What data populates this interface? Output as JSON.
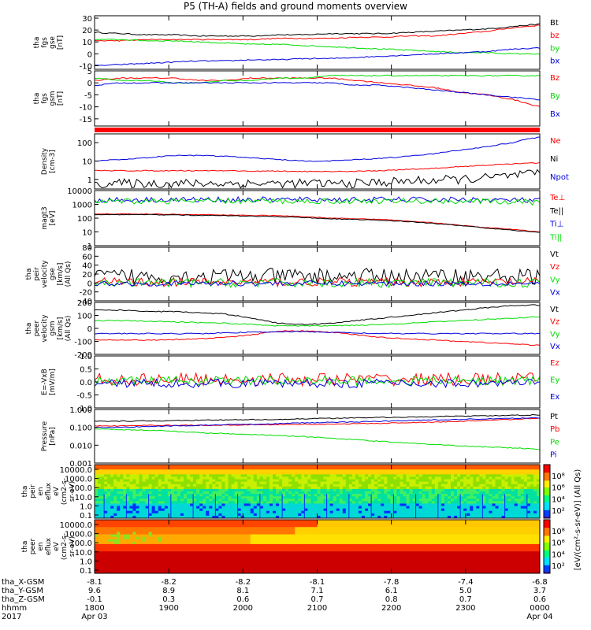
{
  "title": "P5 (TH-A) fields and ground moments overview",
  "colors": {
    "black": "#000000",
    "red": "#ff0000",
    "green": "#00dd00",
    "blue": "#0000dd"
  },
  "chart_data": [
    {
      "type": "line",
      "panel": "fgs_gse",
      "ylabel": [
        "tha",
        "fgs",
        "gse",
        "[nT]"
      ],
      "yticks": [
        30,
        20,
        10,
        0,
        -10
      ],
      "ylim": [
        -13,
        32
      ],
      "series": [
        {
          "name": "Bt",
          "color": "black",
          "values": [
            18,
            17,
            16,
            16,
            15,
            15,
            15,
            16,
            16,
            17,
            17,
            17,
            18,
            19,
            20,
            21,
            23,
            25
          ]
        },
        {
          "name": "bz",
          "color": "red",
          "values": [
            11,
            11,
            12,
            12,
            12,
            12,
            12,
            13,
            13,
            13,
            14,
            14,
            15,
            15,
            17,
            19,
            22,
            24
          ]
        },
        {
          "name": "by",
          "color": "green",
          "values": [
            12,
            12,
            11,
            11,
            10,
            9,
            8,
            8,
            7,
            6,
            5,
            4,
            3,
            2,
            1,
            1,
            0,
            0
          ]
        },
        {
          "name": "bx",
          "color": "blue",
          "values": [
            -10,
            -9,
            -8,
            -7,
            -6,
            -6,
            -5,
            -5,
            -4,
            -4,
            -3,
            -2,
            -1,
            0,
            1,
            2,
            4,
            5
          ]
        }
      ]
    },
    {
      "type": "line",
      "panel": "fgs_gsm",
      "ylabel": [
        "tha",
        "fgs",
        "gsm",
        "[nT]"
      ],
      "yticks": [
        5,
        0,
        -5,
        -10,
        -15
      ],
      "ylim": [
        -18,
        5
      ],
      "series": [
        {
          "name": "Bz",
          "color": "red",
          "values": [
            1,
            2,
            2,
            2,
            1,
            1,
            2,
            2,
            2,
            2,
            1,
            0,
            -1,
            -2,
            -4,
            -5,
            -7,
            -10
          ]
        },
        {
          "name": "By",
          "color": "green",
          "values": [
            2,
            1,
            1,
            0,
            0,
            1,
            1,
            2,
            2,
            3,
            3,
            3,
            3,
            3,
            3,
            3,
            3,
            3
          ]
        },
        {
          "name": "Bx",
          "color": "blue",
          "values": [
            -1,
            0,
            0,
            0,
            0,
            0,
            0,
            0,
            0,
            0,
            -1,
            -1,
            -2,
            -3,
            -4,
            -5,
            -6,
            -7
          ]
        }
      ]
    },
    {
      "type": "line",
      "panel": "density",
      "ylabel": [
        "Density",
        "[cm-3]"
      ],
      "yticks": [
        "100",
        "10",
        "1"
      ],
      "ylim": [
        0.3,
        300
      ],
      "yscale": "log",
      "series": [
        {
          "name": "Ne",
          "color": "red",
          "values": [
            3,
            3,
            3,
            3,
            3,
            3,
            2.8,
            2.8,
            2.7,
            2.6,
            2.8,
            3,
            3.5,
            4,
            5,
            6,
            7,
            8
          ]
        },
        {
          "name": "Ni",
          "color": "black",
          "values": [
            0.6,
            0.6,
            0.6,
            0.6,
            0.6,
            0.6,
            0.6,
            0.6,
            0.6,
            0.6,
            0.6,
            0.7,
            0.8,
            0.9,
            1,
            1.2,
            1.6,
            2
          ]
        },
        {
          "name": "Npot",
          "color": "blue",
          "values": [
            10,
            12,
            15,
            20,
            20,
            18,
            15,
            12,
            10,
            10,
            12,
            14,
            18,
            25,
            40,
            60,
            100,
            200
          ]
        }
      ]
    },
    {
      "type": "line",
      "panel": "temperature",
      "ylabel": [
        "magt3",
        "[eV]"
      ],
      "yticks": [
        "10000",
        "1000",
        "100",
        "10",
        "1"
      ],
      "ylim": [
        1,
        10000
      ],
      "yscale": "log",
      "series": [
        {
          "name": "Te⊥",
          "color": "red",
          "values": [
            200,
            200,
            200,
            190,
            180,
            170,
            160,
            150,
            130,
            100,
            90,
            80,
            60,
            45,
            30,
            20,
            15,
            10
          ]
        },
        {
          "name": "Te||",
          "color": "black",
          "values": [
            180,
            180,
            180,
            170,
            160,
            150,
            140,
            130,
            110,
            90,
            80,
            70,
            55,
            40,
            28,
            18,
            13,
            9
          ]
        },
        {
          "name": "Ti⊥",
          "color": "blue",
          "values": [
            2000,
            2100,
            2200,
            2200,
            2200,
            2200,
            2200,
            2200,
            2200,
            2200,
            2200,
            2200,
            2200,
            2200,
            2200,
            2100,
            2000,
            1900
          ]
        },
        {
          "name": "Ti||",
          "color": "green",
          "values": [
            1500,
            1600,
            1700,
            1700,
            1700,
            1700,
            1700,
            1700,
            1700,
            1700,
            1700,
            1700,
            1700,
            1700,
            1700,
            1600,
            1500,
            1400
          ]
        }
      ]
    },
    {
      "type": "line",
      "panel": "velocity_gse",
      "ylabel": [
        "tha",
        "peir",
        "velocity",
        "gse",
        "[km/s]",
        "(All Qs)"
      ],
      "yticks": [
        80,
        60,
        40,
        20,
        0,
        -20,
        -40
      ],
      "ylim": [
        -40,
        80
      ],
      "series": [
        {
          "name": "Vt",
          "color": "black",
          "values": [
            15,
            15,
            15,
            15,
            15,
            15,
            15,
            15,
            15,
            15,
            15,
            15,
            15,
            15,
            15,
            15,
            15,
            15
          ]
        },
        {
          "name": "Vz",
          "color": "red",
          "values": [
            2,
            2,
            2,
            2,
            2,
            2,
            2,
            2,
            2,
            2,
            2,
            2,
            2,
            2,
            2,
            2,
            2,
            2
          ]
        },
        {
          "name": "Vy",
          "color": "green",
          "values": [
            0,
            0,
            0,
            0,
            0,
            0,
            0,
            0,
            0,
            0,
            0,
            0,
            0,
            0,
            0,
            0,
            0,
            0
          ]
        },
        {
          "name": "Vx",
          "color": "blue",
          "values": [
            -1,
            -1,
            -1,
            -1,
            -1,
            -1,
            -1,
            -1,
            -1,
            -1,
            -1,
            -1,
            -1,
            -1,
            -1,
            -1,
            -1,
            -1
          ]
        }
      ]
    },
    {
      "type": "line",
      "panel": "velocity_gsm",
      "ylabel": [
        "tha",
        "peer",
        "velocity",
        "gsm",
        "[km/s]",
        "(All Qs)"
      ],
      "yticks": [
        200,
        100,
        0,
        -100,
        -200
      ],
      "ylim": [
        -200,
        200
      ],
      "series": [
        {
          "name": "Vt",
          "color": "black",
          "values": [
            140,
            140,
            130,
            130,
            120,
            110,
            80,
            40,
            30,
            40,
            60,
            80,
            100,
            120,
            140,
            160,
            175,
            180
          ]
        },
        {
          "name": "Vz",
          "color": "red",
          "values": [
            -90,
            -90,
            -90,
            -85,
            -80,
            -70,
            -50,
            -20,
            -20,
            -30,
            -50,
            -70,
            -80,
            -90,
            -100,
            -110,
            -120,
            -130
          ]
        },
        {
          "name": "Vy",
          "color": "green",
          "values": [
            60,
            60,
            55,
            50,
            45,
            40,
            30,
            20,
            20,
            20,
            25,
            30,
            40,
            50,
            60,
            70,
            80,
            90
          ]
        },
        {
          "name": "Vx",
          "color": "blue",
          "values": [
            -40,
            -40,
            -40,
            -40,
            -40,
            -35,
            -30,
            -25,
            -25,
            -30,
            -35,
            -40,
            -40,
            -40,
            -40,
            -40,
            -40,
            -40
          ]
        }
      ]
    },
    {
      "type": "line",
      "panel": "efield",
      "ylabel": [
        "E=-VxB",
        "[mV/m]"
      ],
      "yticks": [
        "1.0",
        "0.5",
        "0.0",
        "-0.5",
        "-1.0"
      ],
      "ylim": [
        -1,
        1
      ],
      "series": [
        {
          "name": "Ez",
          "color": "red",
          "values": [
            0.1,
            0.1,
            0.1,
            0.1,
            0.1,
            0.1,
            0.1,
            0.1,
            0.1,
            0.1,
            0.1,
            0.1,
            0.1,
            0.1,
            0.1,
            0.1,
            0.1,
            0.1
          ]
        },
        {
          "name": "Ey",
          "color": "green",
          "values": [
            0.05,
            0.05,
            0.05,
            0.05,
            0.05,
            0.05,
            0.05,
            0.05,
            0.05,
            0.05,
            0.05,
            0.05,
            0.05,
            0.05,
            0.05,
            0.05,
            0.05,
            0.05
          ]
        },
        {
          "name": "Ex",
          "color": "blue",
          "values": [
            -0.05,
            -0.05,
            -0.05,
            -0.05,
            -0.05,
            -0.05,
            -0.05,
            -0.05,
            -0.05,
            -0.05,
            -0.05,
            -0.05,
            -0.05,
            -0.05,
            -0.05,
            -0.05,
            -0.05,
            -0.05
          ]
        }
      ]
    },
    {
      "type": "line",
      "panel": "pressure",
      "ylabel": [
        "Pressure",
        "[nPa]"
      ],
      "yticks": [
        "1.000",
        "0.100",
        "0.010",
        "0.001"
      ],
      "ylim": [
        0.001,
        1
      ],
      "yscale": "log",
      "series": [
        {
          "name": "Pt",
          "color": "black",
          "values": [
            0.22,
            0.22,
            0.23,
            0.24,
            0.25,
            0.26,
            0.27,
            0.28,
            0.3,
            0.32,
            0.34,
            0.36,
            0.38,
            0.4,
            0.42,
            0.44,
            0.47,
            0.5
          ]
        },
        {
          "name": "Pb",
          "color": "red",
          "values": [
            0.12,
            0.12,
            0.13,
            0.13,
            0.13,
            0.13,
            0.14,
            0.14,
            0.15,
            0.15,
            0.16,
            0.17,
            0.18,
            0.2,
            0.22,
            0.25,
            0.28,
            0.32
          ]
        },
        {
          "name": "Pe",
          "color": "green",
          "values": [
            0.08,
            0.075,
            0.07,
            0.06,
            0.05,
            0.045,
            0.04,
            0.035,
            0.03,
            0.025,
            0.02,
            0.016,
            0.013,
            0.011,
            0.009,
            0.008,
            0.007,
            0.006
          ]
        },
        {
          "name": "Pi",
          "color": "blue",
          "values": [
            0.1,
            0.1,
            0.11,
            0.12,
            0.13,
            0.14,
            0.15,
            0.16,
            0.18,
            0.19,
            0.2,
            0.22,
            0.24,
            0.26,
            0.28,
            0.3,
            0.32,
            0.34
          ]
        }
      ]
    },
    {
      "type": "heatmap",
      "panel": "peir_eflux",
      "ylabel": [
        "tha",
        "peir",
        "en",
        "eflux",
        "eV",
        "(cm2-s-",
        "sr-eV)"
      ],
      "yticks": [
        "10000.0",
        "1000.0",
        "100.0",
        "10.0",
        "1.0",
        "0.1"
      ],
      "yscale": "log"
    },
    {
      "type": "heatmap",
      "panel": "peer_eflux",
      "ylabel": [
        "tha",
        "peer",
        "en",
        "eflux",
        "eV",
        "(cm2-s-",
        "sr-eV)"
      ],
      "yticks": [
        "10000.0",
        "1000.0",
        "100.0",
        "10.0",
        "1.0",
        "0.1"
      ],
      "yscale": "log"
    }
  ],
  "colorbar": {
    "ticks_upper": [
      "10⁸",
      "10⁶",
      "10⁴",
      "10²"
    ],
    "ticks_lower": [
      "10⁸",
      "10⁶",
      "10⁴",
      "10²"
    ],
    "label": "[eV/(cm²-s-sr-eV)] (All Qs)"
  },
  "xaxis": {
    "rows": [
      {
        "label": "tha_X-GSM",
        "values": [
          "-8.1",
          "-8.2",
          "-8.2",
          "-8.1",
          "-7.8",
          "-7.4",
          "-6.8"
        ]
      },
      {
        "label": "tha_Y-GSM",
        "values": [
          "9.6",
          "8.9",
          "8.1",
          "7.1",
          "6.1",
          "5.0",
          "3.7"
        ]
      },
      {
        "label": "tha_Z-GSM",
        "values": [
          "-0.1",
          "0.3",
          "0.6",
          "0.7",
          "0.8",
          "0.7",
          "0.6"
        ]
      },
      {
        "label": "hhmm",
        "values": [
          "1800",
          "1900",
          "2000",
          "2100",
          "2200",
          "2300",
          "0000"
        ]
      },
      {
        "label": "2017",
        "values": [
          "Apr 03",
          "",
          "",
          "",
          "",
          "",
          "Apr 04"
        ]
      }
    ]
  }
}
